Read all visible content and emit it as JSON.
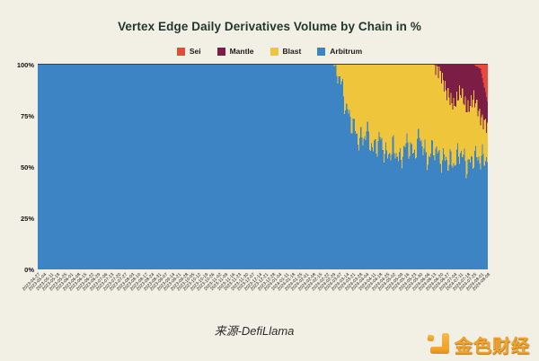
{
  "page": {
    "background": "#f2efe4"
  },
  "chart_data": {
    "type": "bar",
    "stacking": "percent",
    "title": "Vertex Edge Daily Derivatives Volume by Chain in %",
    "title_color": "#1f362c",
    "grid": false,
    "legend_position": "top-center",
    "ylim": [
      0,
      100
    ],
    "y_ticks": [
      {
        "label": "100%",
        "value": 100
      },
      {
        "label": "75%",
        "value": 75
      },
      {
        "label": "50%",
        "value": 50
      },
      {
        "label": "25%",
        "value": 25
      },
      {
        "label": "0%",
        "value": 0
      }
    ],
    "legend": [
      {
        "name": "Sei",
        "color": "#e9483b"
      },
      {
        "name": "Mantle",
        "color": "#7b1d45"
      },
      {
        "name": "Blast",
        "color": "#efc53c"
      },
      {
        "name": "Arbitrum",
        "color": "#3d84c4"
      }
    ],
    "categories": [
      "2023-04-27",
      "2023-05-04",
      "2023-05-11",
      "2023-05-18",
      "2023-05-25",
      "2023-06-01",
      "2023-06-08",
      "2023-06-15",
      "2023-06-22",
      "2023-06-29",
      "2023-07-06",
      "2023-07-13",
      "2023-07-20",
      "2023-07-27",
      "2023-08-03",
      "2023-08-10",
      "2023-08-17",
      "2023-08-24",
      "2023-08-31",
      "2023-09-07",
      "2023-09-14",
      "2023-09-21",
      "2023-09-28",
      "2023-10-05",
      "2023-10-12",
      "2023-10-19",
      "2023-10-26",
      "2023-11-02",
      "2023-11-09",
      "2023-11-16",
      "2023-11-23",
      "2023-11-30",
      "2023-12-07",
      "2023-12-14",
      "2023-12-21",
      "2023-12-28",
      "2024-01-04",
      "2024-01-11",
      "2024-01-18",
      "2024-01-25",
      "2024-02-01",
      "2024-02-08",
      "2024-02-15",
      "2024-02-22",
      "2024-02-29",
      "2024-03-07",
      "2024-03-14",
      "2024-03-21",
      "2024-03-28",
      "2024-04-04",
      "2024-04-11",
      "2024-04-18",
      "2024-04-25",
      "2024-05-02",
      "2024-05-09",
      "2024-05-16",
      "2024-05-23",
      "2024-05-30",
      "2024-06-06",
      "2024-06-13",
      "2024-06-20",
      "2024-06-27",
      "2024-07-04",
      "2024-07-11",
      "2024-07-18",
      "2024-07-25",
      "2024-08-01",
      "2024-08-08"
    ],
    "series": [
      {
        "name": "Arbitrum",
        "color": "#3d84c4",
        "values": [
          100,
          100,
          100,
          100,
          100,
          100,
          100,
          100,
          100,
          100,
          100,
          100,
          100,
          100,
          100,
          100,
          100,
          100,
          100,
          100,
          100,
          100,
          100,
          100,
          100,
          100,
          100,
          100,
          100,
          100,
          100,
          100,
          100,
          100,
          100,
          100,
          100,
          100,
          100,
          100,
          100,
          100,
          100,
          100,
          100,
          94,
          78,
          70,
          62,
          67,
          58,
          64,
          55,
          60,
          53,
          62,
          56,
          65,
          53,
          60,
          54,
          54,
          52,
          58,
          50,
          55,
          54,
          55
        ]
      },
      {
        "name": "Blast",
        "color": "#efc53c",
        "values": [
          0,
          0,
          0,
          0,
          0,
          0,
          0,
          0,
          0,
          0,
          0,
          0,
          0,
          0,
          0,
          0,
          0,
          0,
          0,
          0,
          0,
          0,
          0,
          0,
          0,
          0,
          0,
          0,
          0,
          0,
          0,
          0,
          0,
          0,
          0,
          0,
          0,
          0,
          0,
          0,
          0,
          0,
          0,
          0,
          0,
          6,
          22,
          30,
          38,
          33,
          42,
          36,
          45,
          40,
          47,
          38,
          44,
          35,
          47,
          40,
          42,
          32,
          28,
          29,
          28,
          29,
          20,
          15
        ]
      },
      {
        "name": "Mantle",
        "color": "#7b1d45",
        "values": [
          0,
          0,
          0,
          0,
          0,
          0,
          0,
          0,
          0,
          0,
          0,
          0,
          0,
          0,
          0,
          0,
          0,
          0,
          0,
          0,
          0,
          0,
          0,
          0,
          0,
          0,
          0,
          0,
          0,
          0,
          0,
          0,
          0,
          0,
          0,
          0,
          0,
          0,
          0,
          0,
          0,
          0,
          0,
          0,
          0,
          0,
          0,
          0,
          0,
          0,
          0,
          0,
          0,
          0,
          0,
          0,
          0,
          0,
          0,
          0,
          4,
          14,
          20,
          13,
          22,
          16,
          24,
          12
        ]
      },
      {
        "name": "Sei",
        "color": "#e9483b",
        "values": [
          0,
          0,
          0,
          0,
          0,
          0,
          0,
          0,
          0,
          0,
          0,
          0,
          0,
          0,
          0,
          0,
          0,
          0,
          0,
          0,
          0,
          0,
          0,
          0,
          0,
          0,
          0,
          0,
          0,
          0,
          0,
          0,
          0,
          0,
          0,
          0,
          0,
          0,
          0,
          0,
          0,
          0,
          0,
          0,
          0,
          0,
          0,
          0,
          0,
          0,
          0,
          0,
          0,
          0,
          0,
          0,
          0,
          0,
          0,
          0,
          0,
          0,
          0,
          0,
          0,
          0,
          2,
          18
        ]
      }
    ],
    "render": {
      "days_per_tick": 7,
      "noise_amp": 7
    }
  },
  "footer": {
    "source_label": "来源-DefiLlama"
  },
  "logo": {
    "text": "金色财经",
    "color": "#f1a32e"
  }
}
